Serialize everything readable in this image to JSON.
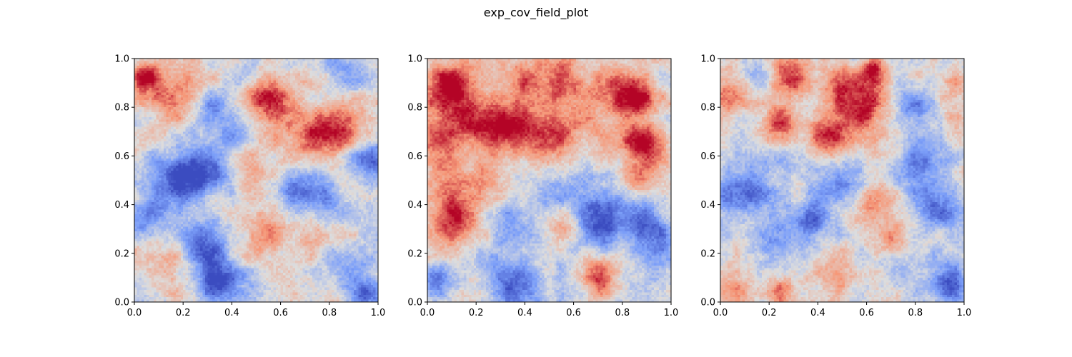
{
  "figure": {
    "title": "exp_cov_field_plot"
  },
  "chart_data": [
    {
      "type": "heatmap",
      "colormap": "coolwarm",
      "xlim": [
        0.0,
        1.0
      ],
      "ylim": [
        0.0,
        1.0
      ],
      "xticks": [
        "0.0",
        "0.2",
        "0.4",
        "0.6",
        "0.8",
        "1.0"
      ],
      "yticks": [
        "0.0",
        "0.2",
        "0.4",
        "0.6",
        "0.8",
        "1.0"
      ],
      "grid": false,
      "features": [
        {
          "x": 0.05,
          "y": 0.93,
          "v": 0.95,
          "r": 0.04
        },
        {
          "x": 0.17,
          "y": 0.88,
          "v": 0.55,
          "r": 0.09
        },
        {
          "x": 0.55,
          "y": 0.84,
          "v": 0.75,
          "r": 0.06
        },
        {
          "x": 0.82,
          "y": 0.71,
          "v": 0.85,
          "r": 0.07
        },
        {
          "x": 0.67,
          "y": 0.7,
          "v": 0.5,
          "r": 0.1
        },
        {
          "x": 0.45,
          "y": 0.55,
          "v": 0.3,
          "r": 0.06
        },
        {
          "x": 0.55,
          "y": 0.28,
          "v": 0.45,
          "r": 0.07
        },
        {
          "x": 0.75,
          "y": 0.25,
          "v": 0.3,
          "r": 0.08
        },
        {
          "x": 0.13,
          "y": 0.15,
          "v": 0.25,
          "r": 0.07
        },
        {
          "x": 0.2,
          "y": 0.5,
          "v": -0.9,
          "r": 0.08
        },
        {
          "x": 0.3,
          "y": 0.55,
          "v": -0.6,
          "r": 0.07
        },
        {
          "x": 0.3,
          "y": 0.25,
          "v": -0.75,
          "r": 0.07
        },
        {
          "x": 0.33,
          "y": 0.08,
          "v": -0.95,
          "r": 0.07
        },
        {
          "x": 0.72,
          "y": 0.45,
          "v": -0.85,
          "r": 0.08
        },
        {
          "x": 0.97,
          "y": 0.58,
          "v": -0.75,
          "r": 0.06
        },
        {
          "x": 0.85,
          "y": 0.15,
          "v": -0.5,
          "r": 0.08
        },
        {
          "x": 0.4,
          "y": 0.72,
          "v": -0.45,
          "r": 0.08
        },
        {
          "x": 0.3,
          "y": 0.8,
          "v": -0.45,
          "r": 0.06
        },
        {
          "x": 0.88,
          "y": 0.95,
          "v": -0.45,
          "r": 0.06
        },
        {
          "x": 0.05,
          "y": 0.35,
          "v": -0.45,
          "r": 0.06
        },
        {
          "x": 0.95,
          "y": 0.03,
          "v": -0.7,
          "r": 0.05
        }
      ]
    },
    {
      "type": "heatmap",
      "colormap": "coolwarm",
      "xlim": [
        0.0,
        1.0
      ],
      "ylim": [
        0.0,
        1.0
      ],
      "xticks": [
        "0.0",
        "0.2",
        "0.4",
        "0.6",
        "0.8",
        "1.0"
      ],
      "yticks": [
        "0.0",
        "0.2",
        "0.4",
        "0.6",
        "0.8",
        "1.0"
      ],
      "grid": false,
      "features": [
        {
          "x": 0.1,
          "y": 0.9,
          "v": 0.85,
          "r": 0.07
        },
        {
          "x": 0.05,
          "y": 0.72,
          "v": 0.6,
          "r": 0.09
        },
        {
          "x": 0.2,
          "y": 0.75,
          "v": 0.65,
          "r": 0.09
        },
        {
          "x": 0.33,
          "y": 0.7,
          "v": 0.9,
          "r": 0.07
        },
        {
          "x": 0.48,
          "y": 0.68,
          "v": 0.85,
          "r": 0.07
        },
        {
          "x": 0.55,
          "y": 0.9,
          "v": 0.8,
          "r": 0.07
        },
        {
          "x": 0.38,
          "y": 0.88,
          "v": 0.5,
          "r": 0.08
        },
        {
          "x": 0.75,
          "y": 0.9,
          "v": 0.5,
          "r": 0.08
        },
        {
          "x": 0.85,
          "y": 0.83,
          "v": 0.85,
          "r": 0.06
        },
        {
          "x": 0.88,
          "y": 0.65,
          "v": 0.95,
          "r": 0.06
        },
        {
          "x": 0.87,
          "y": 0.5,
          "v": 0.55,
          "r": 0.05
        },
        {
          "x": 0.62,
          "y": 0.72,
          "v": 0.4,
          "r": 0.08
        },
        {
          "x": 0.1,
          "y": 0.33,
          "v": 0.85,
          "r": 0.07
        },
        {
          "x": 0.2,
          "y": 0.45,
          "v": 0.45,
          "r": 0.08
        },
        {
          "x": 0.05,
          "y": 0.5,
          "v": 0.45,
          "r": 0.07
        },
        {
          "x": 0.7,
          "y": 0.12,
          "v": 0.75,
          "r": 0.06
        },
        {
          "x": 0.55,
          "y": 0.3,
          "v": 0.4,
          "r": 0.06
        },
        {
          "x": 0.72,
          "y": 0.35,
          "v": -0.95,
          "r": 0.07
        },
        {
          "x": 0.9,
          "y": 0.3,
          "v": -0.8,
          "r": 0.08
        },
        {
          "x": 0.4,
          "y": 0.05,
          "v": -0.8,
          "r": 0.07
        },
        {
          "x": 0.3,
          "y": 0.13,
          "v": -0.5,
          "r": 0.07
        },
        {
          "x": 0.05,
          "y": 0.08,
          "v": -0.75,
          "r": 0.05
        },
        {
          "x": 0.35,
          "y": 0.35,
          "v": -0.45,
          "r": 0.08
        },
        {
          "x": 0.55,
          "y": 0.45,
          "v": -0.4,
          "r": 0.07
        },
        {
          "x": 0.6,
          "y": 0.2,
          "v": -0.35,
          "r": 0.07
        },
        {
          "x": 0.95,
          "y": 0.1,
          "v": -0.3,
          "r": 0.06
        }
      ]
    },
    {
      "type": "heatmap",
      "colormap": "coolwarm",
      "xlim": [
        0.0,
        1.0
      ],
      "ylim": [
        0.0,
        1.0
      ],
      "xticks": [
        "0.0",
        "0.2",
        "0.4",
        "0.6",
        "0.8",
        "1.0"
      ],
      "yticks": [
        "0.0",
        "0.2",
        "0.4",
        "0.6",
        "0.8",
        "1.0"
      ],
      "grid": false,
      "features": [
        {
          "x": 0.27,
          "y": 0.92,
          "v": 0.8,
          "r": 0.06
        },
        {
          "x": 0.25,
          "y": 0.72,
          "v": 0.85,
          "r": 0.06
        },
        {
          "x": 0.45,
          "y": 0.68,
          "v": 0.95,
          "r": 0.06
        },
        {
          "x": 0.6,
          "y": 0.8,
          "v": 0.9,
          "r": 0.07
        },
        {
          "x": 0.5,
          "y": 0.88,
          "v": 0.55,
          "r": 0.07
        },
        {
          "x": 0.63,
          "y": 0.95,
          "v": 0.8,
          "r": 0.04
        },
        {
          "x": 0.05,
          "y": 0.85,
          "v": 0.45,
          "r": 0.08
        },
        {
          "x": 0.95,
          "y": 0.85,
          "v": 0.35,
          "r": 0.06
        },
        {
          "x": 0.62,
          "y": 0.4,
          "v": 0.45,
          "r": 0.06
        },
        {
          "x": 0.68,
          "y": 0.25,
          "v": 0.45,
          "r": 0.06
        },
        {
          "x": 0.05,
          "y": 0.05,
          "v": 0.6,
          "r": 0.06
        },
        {
          "x": 0.25,
          "y": 0.05,
          "v": 0.45,
          "r": 0.06
        },
        {
          "x": 0.45,
          "y": 0.1,
          "v": 0.35,
          "r": 0.07
        },
        {
          "x": 0.37,
          "y": 0.33,
          "v": -0.95,
          "r": 0.06
        },
        {
          "x": 0.1,
          "y": 0.45,
          "v": -0.7,
          "r": 0.08
        },
        {
          "x": 0.2,
          "y": 0.25,
          "v": -0.6,
          "r": 0.07
        },
        {
          "x": 0.93,
          "y": 0.08,
          "v": -0.9,
          "r": 0.06
        },
        {
          "x": 0.9,
          "y": 0.4,
          "v": -0.75,
          "r": 0.07
        },
        {
          "x": 0.8,
          "y": 0.55,
          "v": -0.6,
          "r": 0.07
        },
        {
          "x": 0.8,
          "y": 0.8,
          "v": -0.65,
          "r": 0.06
        },
        {
          "x": 0.15,
          "y": 0.93,
          "v": -0.45,
          "r": 0.06
        },
        {
          "x": 0.5,
          "y": 0.5,
          "v": -0.45,
          "r": 0.07
        },
        {
          "x": 0.3,
          "y": 0.55,
          "v": -0.35,
          "r": 0.07
        },
        {
          "x": 0.75,
          "y": 0.15,
          "v": -0.35,
          "r": 0.06
        }
      ]
    }
  ]
}
